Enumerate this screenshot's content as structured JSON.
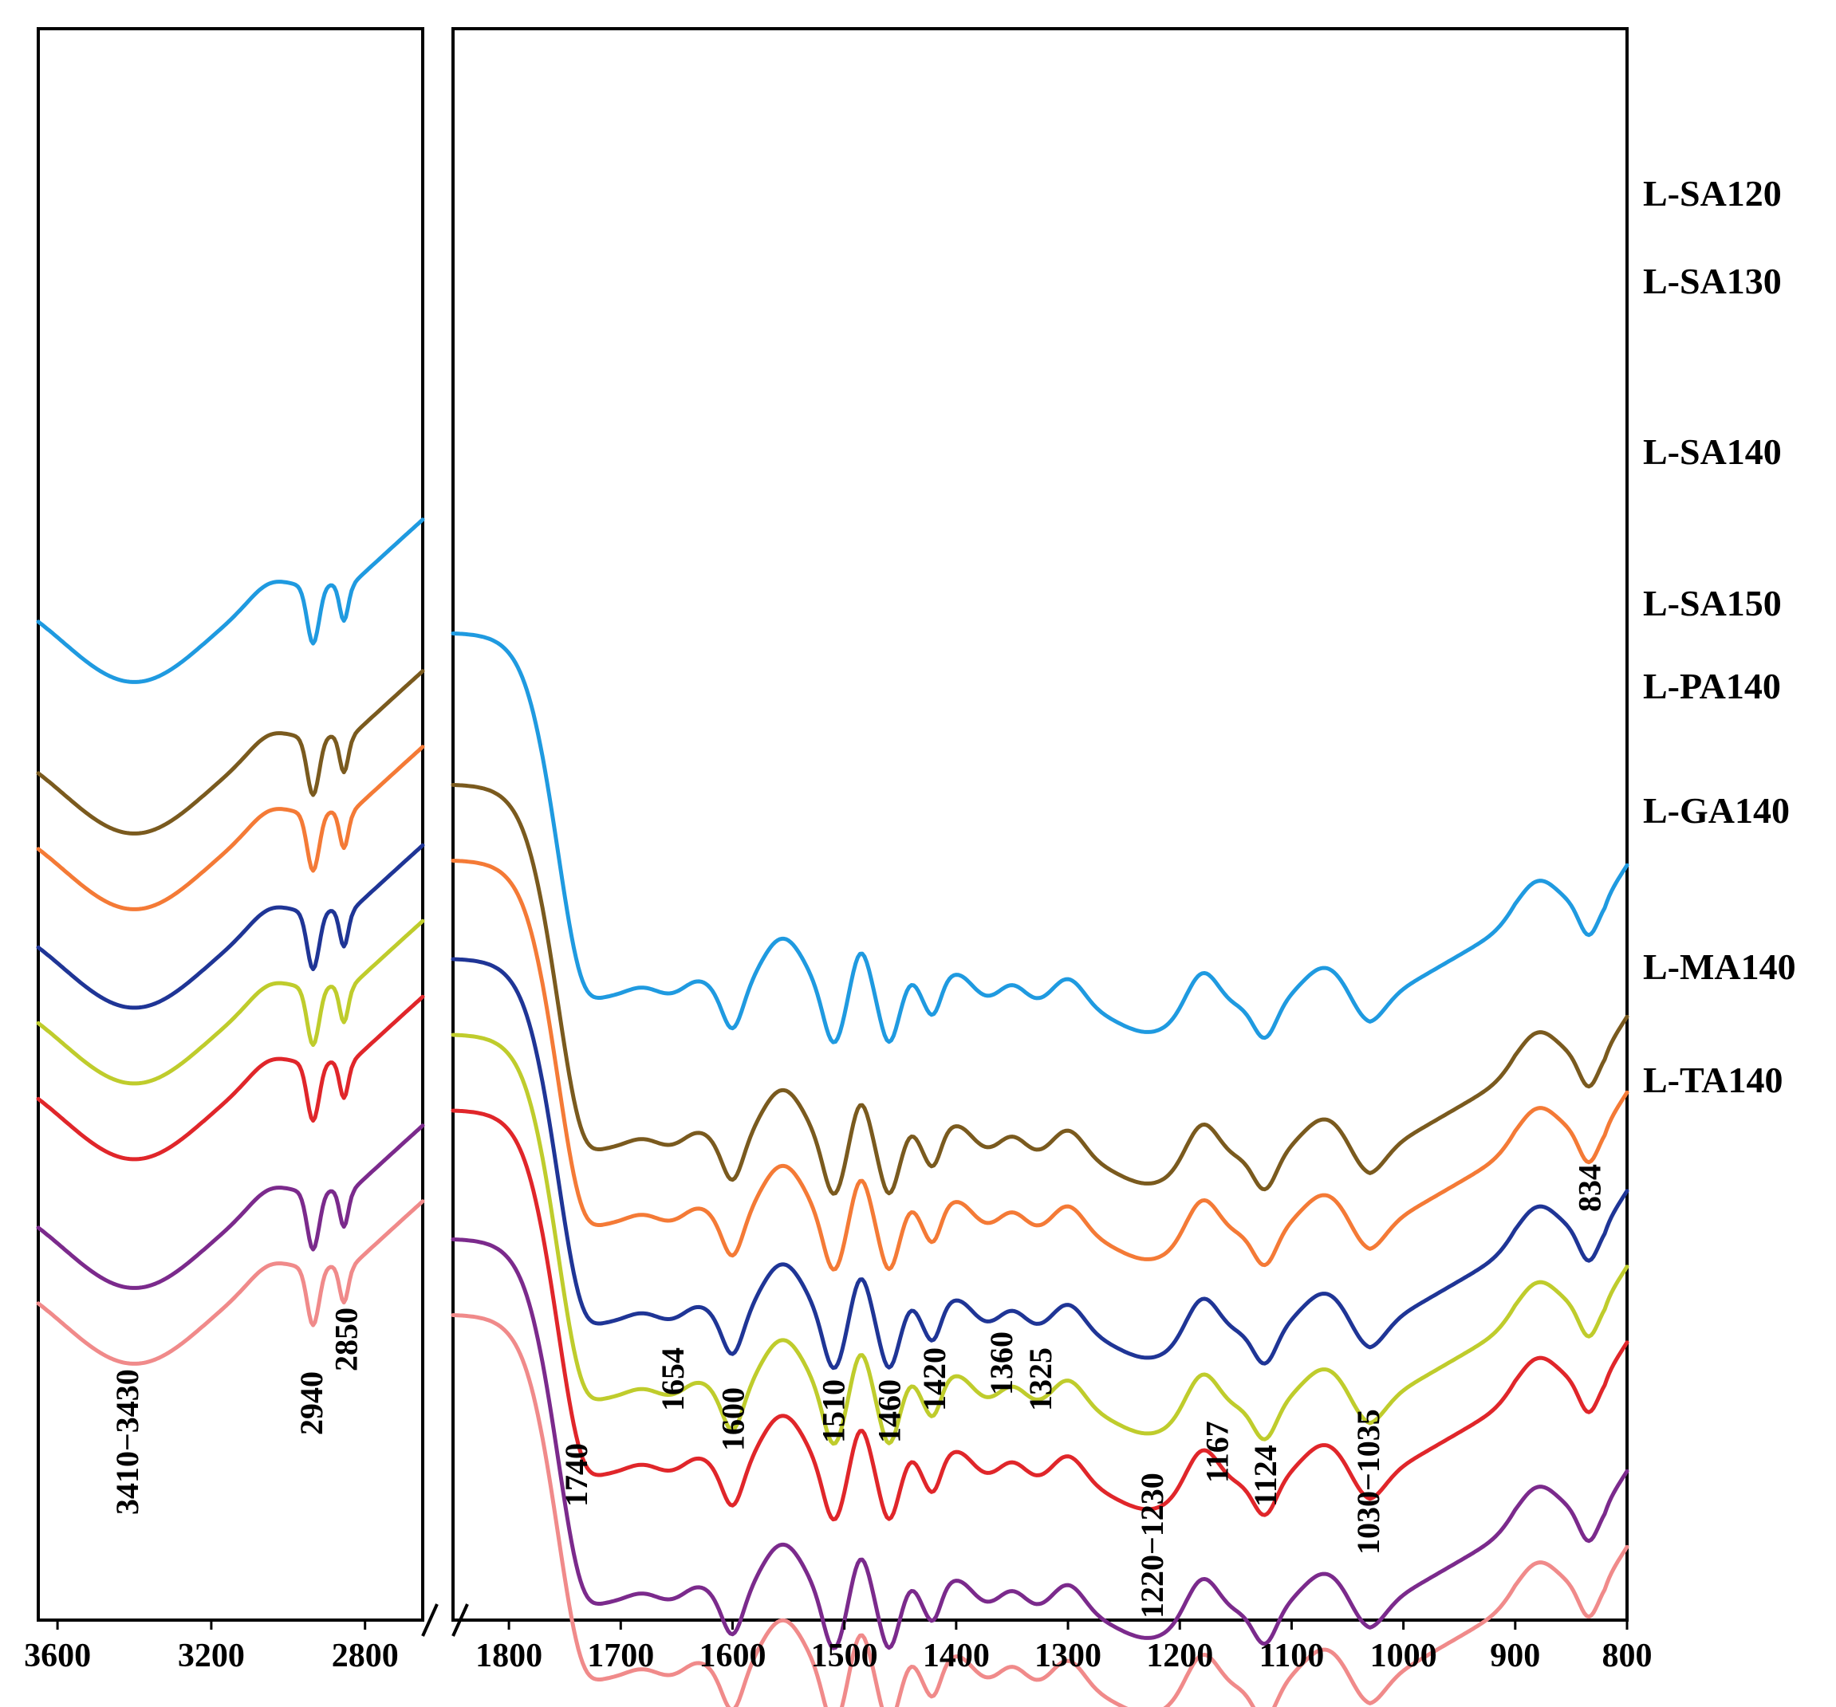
{
  "chart_data": {
    "type": "line",
    "title": "",
    "xlabel": "",
    "ylabel": "",
    "panels": [
      {
        "name": "left",
        "xlim": [
          3650,
          2650
        ],
        "ticks": [
          3600,
          3200,
          2800
        ]
      },
      {
        "name": "right",
        "xlim": [
          1850,
          800
        ],
        "ticks": [
          1800,
          1700,
          1600,
          1500,
          1400,
          1300,
          1200,
          1100,
          1000,
          900,
          800
        ]
      }
    ],
    "tick_labels": {
      "left": [
        "3600",
        "3200",
        "2800"
      ],
      "right": [
        "1800",
        "1700",
        "1600",
        "1500",
        "1400",
        "1300",
        "1200",
        "1100",
        "1000",
        "900",
        "800"
      ]
    },
    "series": [
      {
        "name": "L-SA120",
        "color": "#1f9ae0",
        "offset": 10.0
      },
      {
        "name": "L-SA130",
        "color": "#7a5a1e",
        "offset": 8.0
      },
      {
        "name": "L-SA140",
        "color": "#f47a36",
        "offset": 7.0
      },
      {
        "name": "L-SA150",
        "color": "#1f3596",
        "offset": 5.7
      },
      {
        "name": "L-PA140",
        "color": "#bfcc2c",
        "offset": 4.7
      },
      {
        "name": "L-GA140",
        "color": "#e0262a",
        "offset": 3.7
      },
      {
        "name": "L-MA140",
        "color": "#7b2a8c",
        "offset": 2.0
      },
      {
        "name": "L-TA140",
        "color": "#f08a8a",
        "offset": 1.0
      }
    ],
    "annotations": [
      {
        "label": "3410−3430",
        "x": 3420
      },
      {
        "label": "2940",
        "x": 2940
      },
      {
        "label": "2850",
        "x": 2850
      },
      {
        "label": "1740",
        "x": 1740
      },
      {
        "label": "1654",
        "x": 1654
      },
      {
        "label": "1600",
        "x": 1600
      },
      {
        "label": "1510",
        "x": 1510
      },
      {
        "label": "1460",
        "x": 1460
      },
      {
        "label": "1420",
        "x": 1420
      },
      {
        "label": "1360",
        "x": 1360
      },
      {
        "label": "1325",
        "x": 1325
      },
      {
        "label": "1220−1230",
        "x": 1225
      },
      {
        "label": "1167",
        "x": 1167
      },
      {
        "label": "1124",
        "x": 1124
      },
      {
        "label": "1030−1035",
        "x": 1032
      },
      {
        "label": "834",
        "x": 834
      }
    ]
  }
}
